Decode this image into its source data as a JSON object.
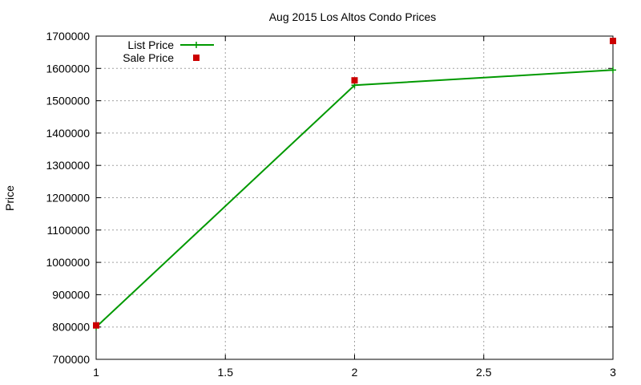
{
  "chart_data": {
    "type": "line",
    "title": "Aug 2015 Los Altos Condo Prices",
    "xlabel": "",
    "ylabel": "Price",
    "xlim": [
      1,
      3
    ],
    "ylim": [
      700000,
      1700000
    ],
    "x_ticks": [
      1,
      1.5,
      2,
      2.5,
      3
    ],
    "x_tick_labels": [
      "1",
      "1.5",
      "2",
      "2.5",
      "3"
    ],
    "y_ticks": [
      700000,
      800000,
      900000,
      1000000,
      1100000,
      1200000,
      1300000,
      1400000,
      1500000,
      1600000,
      1700000
    ],
    "y_tick_labels": [
      "700000",
      "800000",
      "900000",
      "1000000",
      "1100000",
      "1200000",
      "1300000",
      "1400000",
      "1500000",
      "1600000",
      "1700000"
    ],
    "grid": true,
    "legend_position": "top-left",
    "series": [
      {
        "name": "List Price",
        "style": "line-with-plus-markers",
        "color": "#009900",
        "x": [
          1,
          2,
          3
        ],
        "values": [
          800000,
          1548000,
          1595000
        ]
      },
      {
        "name": "Sale Price",
        "style": "square-markers",
        "color": "#cc0000",
        "x": [
          1,
          2,
          3
        ],
        "values": [
          805000,
          1563000,
          1685000
        ]
      }
    ]
  }
}
